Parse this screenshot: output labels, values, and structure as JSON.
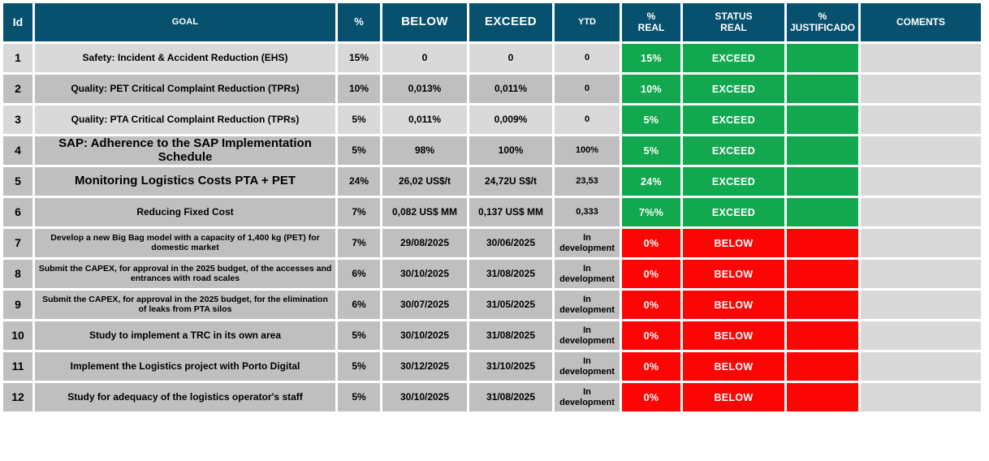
{
  "table": {
    "columns": [
      {
        "key": "id",
        "label": "Id"
      },
      {
        "key": "goal",
        "label": "GOAL"
      },
      {
        "key": "pct",
        "label": "%"
      },
      {
        "key": "below",
        "label": "BELOW"
      },
      {
        "key": "exceed",
        "label": "EXCEED"
      },
      {
        "key": "ytd",
        "label": "YTD"
      },
      {
        "key": "pct_real",
        "label": "%\nREAL"
      },
      {
        "key": "status_real",
        "label": "STATUS\nREAL"
      },
      {
        "key": "pct_justificado",
        "label": "%\nJUSTIFICADO"
      },
      {
        "key": "comments",
        "label": "COMENTS"
      }
    ],
    "rows": [
      {
        "id": "1",
        "goal": "Safety: Incident & Accident Reduction (EHS)",
        "pct": "15%",
        "below": "0",
        "exceed": "0",
        "ytd": "0",
        "pct_real": "15%",
        "status_real": "EXCEED",
        "pct_justificado": "",
        "comments": ""
      },
      {
        "id": "2",
        "goal": "Quality: PET Critical Complaint Reduction (TPRs)",
        "pct": "10%",
        "below": "0,013%",
        "exceed": "0,011%",
        "ytd": "0",
        "pct_real": "10%",
        "status_real": "EXCEED",
        "pct_justificado": "",
        "comments": ""
      },
      {
        "id": "3",
        "goal": "Quality: PTA Critical Complaint Reduction (TPRs)",
        "pct": "5%",
        "below": "0,011%",
        "exceed": "0,009%",
        "ytd": "0",
        "pct_real": "5%",
        "status_real": "EXCEED",
        "pct_justificado": "",
        "comments": ""
      },
      {
        "id": "4",
        "goal": "SAP: Adherence to the SAP Implementation Schedule",
        "pct": "5%",
        "below": "98%",
        "exceed": "100%",
        "ytd": "100%",
        "pct_real": "5%",
        "status_real": "EXCEED",
        "pct_justificado": "",
        "comments": ""
      },
      {
        "id": "5",
        "goal": "Monitoring Logistics Costs PTA + PET",
        "pct": "24%",
        "below": "26,02 US$/t",
        "exceed": "24,72U S$/t",
        "ytd": "23,53",
        "pct_real": "24%",
        "status_real": "EXCEED",
        "pct_justificado": "",
        "comments": ""
      },
      {
        "id": "6",
        "goal": "Reducing Fixed Cost",
        "pct": "7%",
        "below": "0,082 US$ MM",
        "exceed": "0,137 US$ MM",
        "ytd": "0,333",
        "pct_real": "7%%",
        "status_real": "EXCEED",
        "pct_justificado": "",
        "comments": ""
      },
      {
        "id": "7",
        "goal": "Develop a new Big Bag model with a capacity of 1,400 kg (PET) for domestic market",
        "pct": "7%",
        "below": "29/08/2025",
        "exceed": "30/06/2025",
        "ytd": "In development",
        "pct_real": "0%",
        "status_real": "BELOW",
        "pct_justificado": "",
        "comments": ""
      },
      {
        "id": "8",
        "goal": "Submit the CAPEX, for approval in the 2025 budget, of the accesses and entrances with road scales",
        "pct": "6%",
        "below": "30/10/2025",
        "exceed": "31/08/2025",
        "ytd": "In development",
        "pct_real": "0%",
        "status_real": "BELOW",
        "pct_justificado": "",
        "comments": ""
      },
      {
        "id": "9",
        "goal": "Submit the CAPEX, for approval in the 2025 budget, for the elimination of leaks from PTA silos",
        "pct": "6%",
        "below": "30/07/2025",
        "exceed": "31/05/2025",
        "ytd": "In development",
        "pct_real": "0%",
        "status_real": "BELOW",
        "pct_justificado": "",
        "comments": ""
      },
      {
        "id": "10",
        "goal": "Study to implement a TRC in its own area",
        "pct": "5%",
        "below": "30/10/2025",
        "exceed": "31/08/2025",
        "ytd": "In development",
        "pct_real": "0%",
        "status_real": "BELOW",
        "pct_justificado": "",
        "comments": ""
      },
      {
        "id": "11",
        "goal": "Implement the Logistics project with Porto Digital",
        "pct": "5%",
        "below": "30/12/2025",
        "exceed": "31/10/2025",
        "ytd": "In development",
        "pct_real": "0%",
        "status_real": "BELOW",
        "pct_justificado": "",
        "comments": ""
      },
      {
        "id": "12",
        "goal": "Study for adequacy of the logistics operator's staff",
        "pct": "5%",
        "below": "30/10/2025",
        "exceed": "31/08/2025",
        "ytd": "In development",
        "pct_real": "0%",
        "status_real": "BELOW",
        "pct_justificado": "",
        "comments": ""
      }
    ]
  },
  "palette": {
    "header_bg": "#07506E",
    "exceed_green": "#12A84F",
    "below_red": "#FB0505",
    "row_light": "#D9D9D9",
    "row_dark": "#BFBFBF",
    "comments_bg": "#D9D9D9",
    "status_text": "#FFFFFF"
  }
}
